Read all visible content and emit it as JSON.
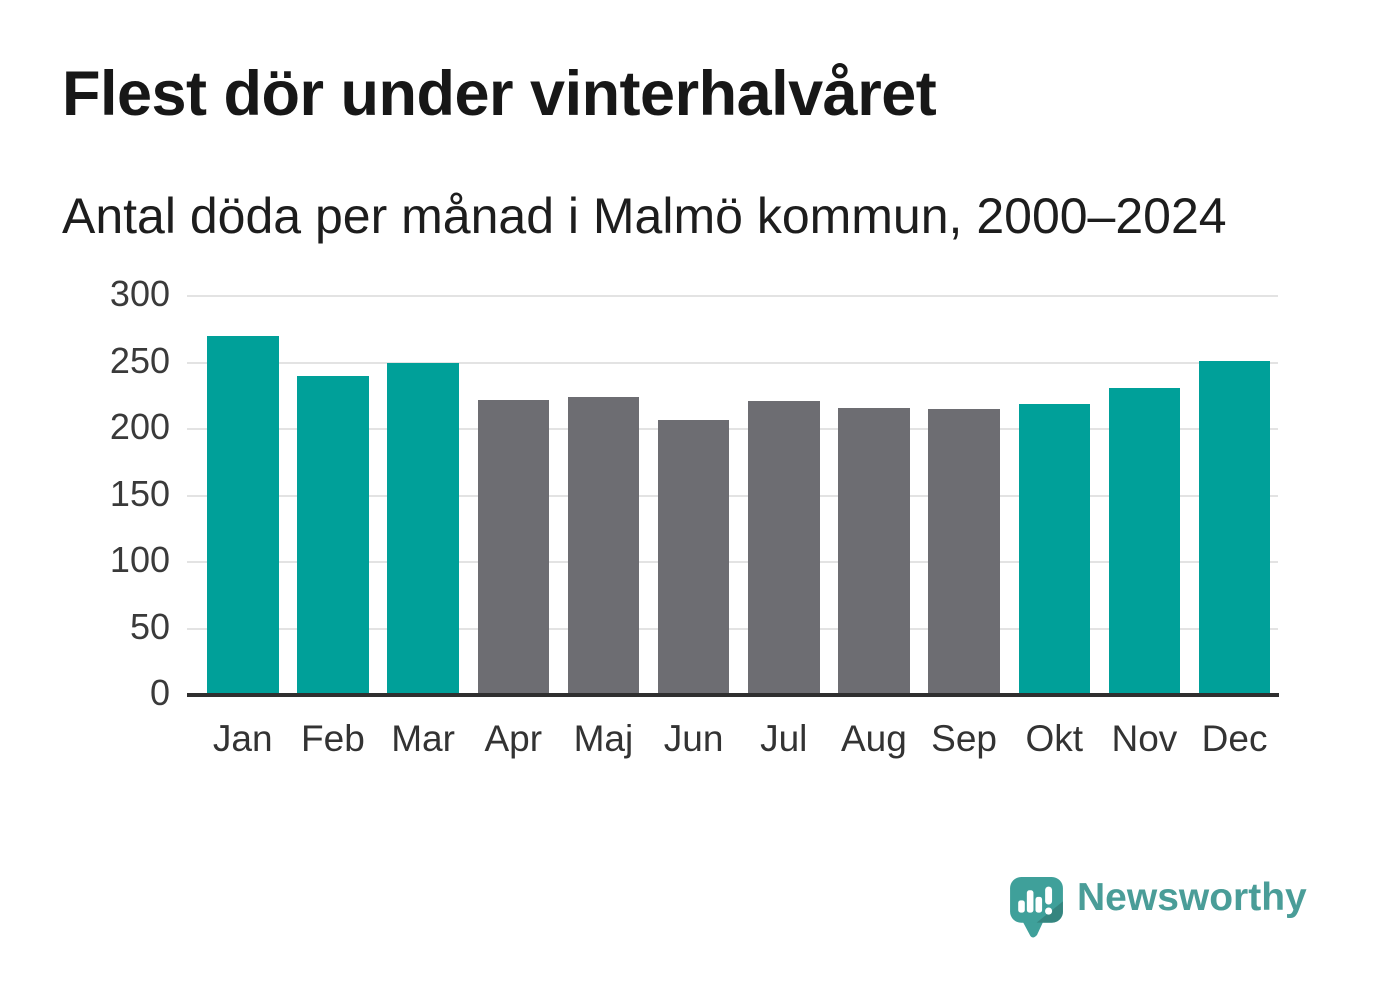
{
  "title": "Flest dör under vinterhalvåret",
  "subtitle": "Antal döda per månad i Malmö kommun, 2000–2024",
  "chart_data": {
    "type": "bar",
    "title": "Flest dör under vinterhalvåret",
    "subtitle": "Antal döda per månad i Malmö kommun, 2000–2024",
    "categories": [
      "Jan",
      "Feb",
      "Mar",
      "Apr",
      "Maj",
      "Jun",
      "Jul",
      "Aug",
      "Sep",
      "Okt",
      "Nov",
      "Dec"
    ],
    "values": [
      270,
      240,
      250,
      222,
      224,
      207,
      221,
      216,
      215,
      219,
      231,
      251
    ],
    "highlighted": [
      true,
      true,
      true,
      false,
      false,
      false,
      false,
      false,
      false,
      true,
      true,
      true
    ],
    "xlabel": "",
    "ylabel": "",
    "ylim": [
      0,
      300
    ],
    "yticks": [
      0,
      50,
      100,
      150,
      200,
      250,
      300
    ],
    "grid": true,
    "legend": false
  },
  "branding": {
    "logo_text": "Newsworthy",
    "logo_icon": "speech-bubble-bar-chart-icon"
  },
  "colors": {
    "bar_highlight": "#00a099",
    "bar_default": "#6d6d72",
    "gridline": "#e3e3e3",
    "axis_line": "#2f2f2f",
    "tick_label": "#3a3a3a",
    "title_text": "#171717",
    "logo_teal": "#4a9d98",
    "logo_teal_dark": "#35857f",
    "logo_bubble": "#3fa09a",
    "background": "#ffffff"
  }
}
